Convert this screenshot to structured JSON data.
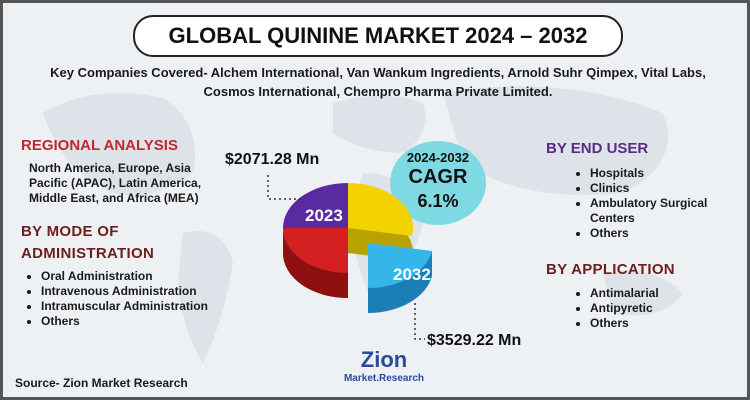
{
  "title": "GLOBAL QUININE MARKET 2024 – 2032",
  "subtitle": "Key Companies Covered- Alchem International, Van Wankum Ingredients, Arnold Suhr Qimpex, Vital Labs, Cosmos International, Chempro Pharma Private Limited.",
  "regional_analysis": {
    "heading": "REGIONAL ANALYSIS",
    "text": "North America, Europe, Asia Pacific (APAC), Latin America, Middle East, and Africa (MEA)"
  },
  "mode_of_administration": {
    "heading": "BY MODE OF ADMINISTRATION",
    "items": [
      "Oral Administration",
      "Intravenous Administration",
      "Intramuscular Administration",
      "Others"
    ]
  },
  "market_size": {
    "start_value": "$2071.28 Mn",
    "start_year": "2023",
    "end_value": "$3529.22 Mn",
    "end_year": "2032"
  },
  "cagr": {
    "period": "2024-2032",
    "label": "CAGR",
    "value": "6.1%"
  },
  "end_user": {
    "heading": "BY END USER",
    "items": [
      "Hospitals",
      "Clinics",
      "Ambulatory Surgical Centers",
      "Others"
    ]
  },
  "application": {
    "heading": "BY APPLICATION",
    "items": [
      "Antimalarial",
      "Antipyretic",
      "Others"
    ]
  },
  "source": "Source- Zion Market Research",
  "logo": {
    "name": "Zion",
    "tagline": "Market.Research"
  }
}
